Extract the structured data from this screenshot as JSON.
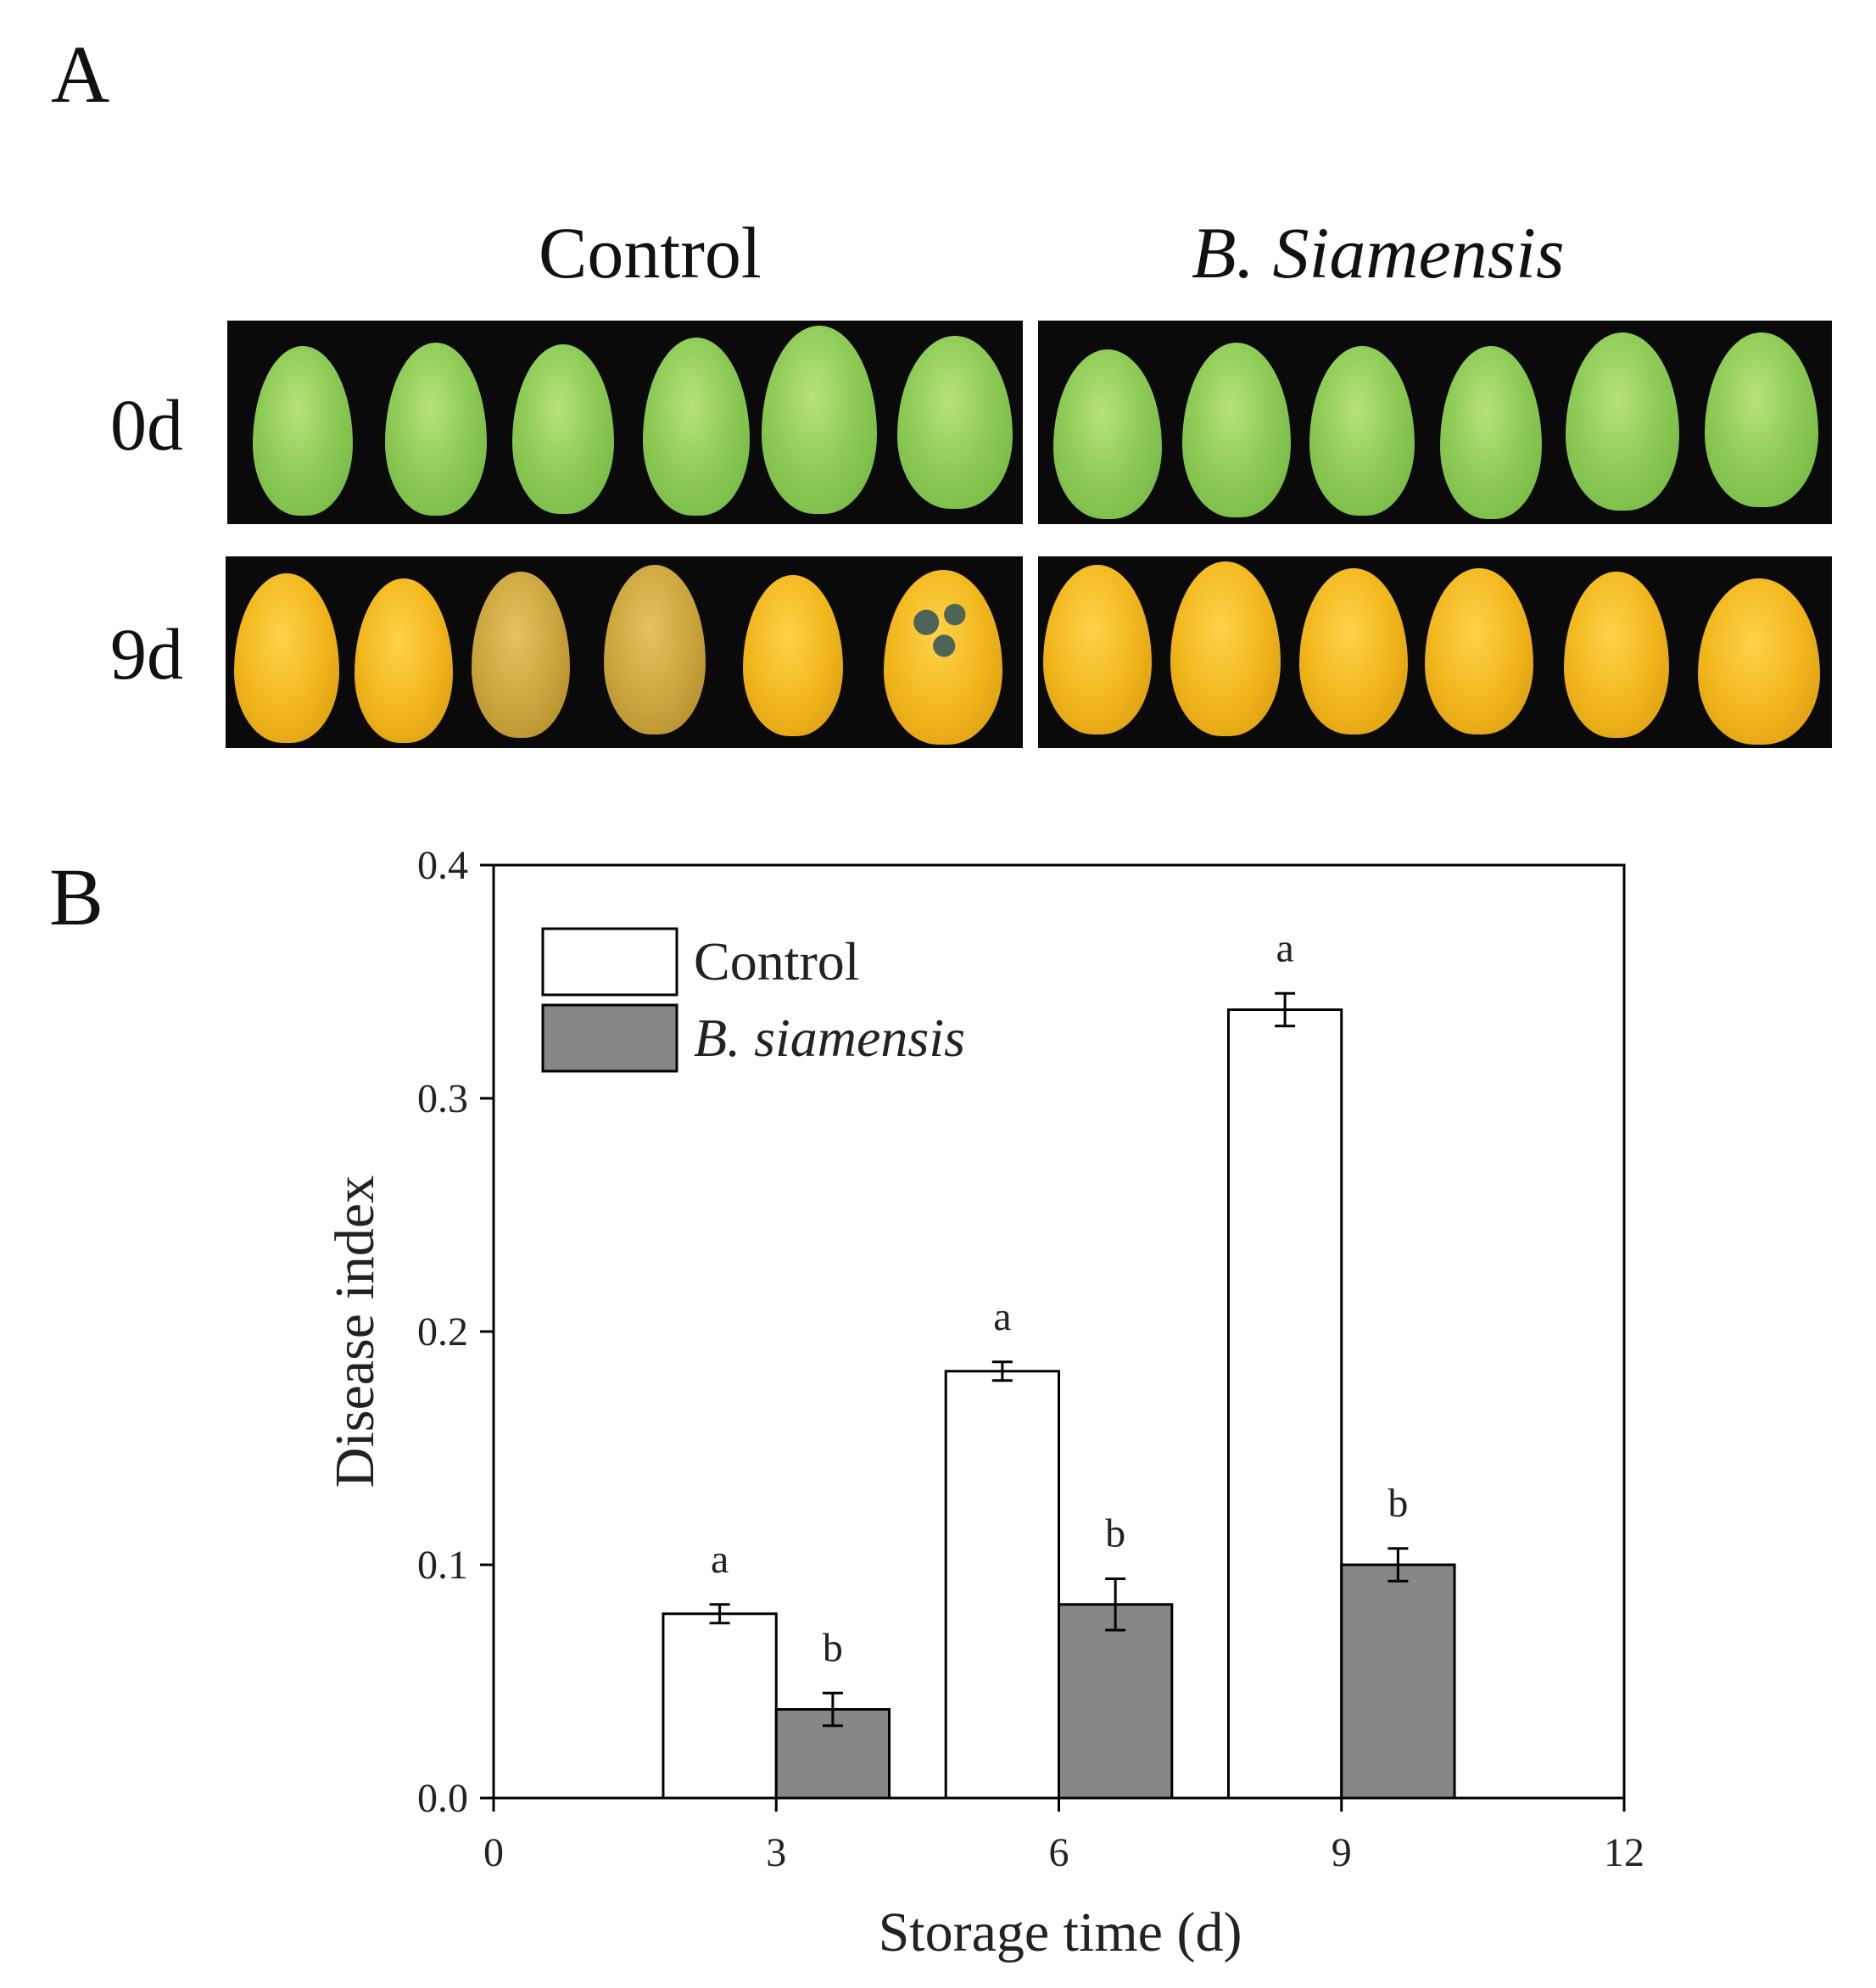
{
  "figure": {
    "panel_a_letter": "A",
    "panel_b_letter": "B",
    "panel_a": {
      "column_titles": [
        "Control",
        "B. Siamensis"
      ],
      "row_labels": [
        "0d",
        "9d"
      ],
      "fruit_photo_description_colors": {
        "day0": "#8fcc57",
        "day9": "#f2b71d",
        "background": "#0a0a0a"
      }
    }
  },
  "chart_data": {
    "type": "bar",
    "title": "",
    "xlabel": "Storage time (d)",
    "ylabel": "Disease index",
    "xlim": [
      0,
      12
    ],
    "ylim": [
      0,
      0.4
    ],
    "x_ticks": [
      0,
      3,
      6,
      9,
      12
    ],
    "x_tick_labels": [
      "0",
      "3",
      "6",
      "9",
      "12"
    ],
    "y_ticks": [
      0.0,
      0.1,
      0.2,
      0.3,
      0.4
    ],
    "y_tick_labels": [
      "0.0",
      "0.1",
      "0.2",
      "0.3",
      "0.4"
    ],
    "categories": [
      3,
      6,
      9
    ],
    "bar_width": 1.2,
    "series": [
      {
        "name": "Control",
        "italic": false,
        "color": "#ffffff",
        "x": [
          2.4,
          5.4,
          8.4
        ],
        "values": [
          0.079,
          0.183,
          0.338
        ],
        "errors": [
          0.004,
          0.004,
          0.007
        ],
        "significance": [
          "a",
          "a",
          "a"
        ]
      },
      {
        "name": "B. siamensis",
        "italic": true,
        "color": "#878787",
        "x": [
          3.6,
          6.6,
          9.6
        ],
        "values": [
          0.038,
          0.083,
          0.1
        ],
        "errors": [
          0.007,
          0.011,
          0.007
        ],
        "significance": [
          "b",
          "b",
          "b"
        ]
      }
    ],
    "legend_position": "top-left",
    "grid": false
  }
}
